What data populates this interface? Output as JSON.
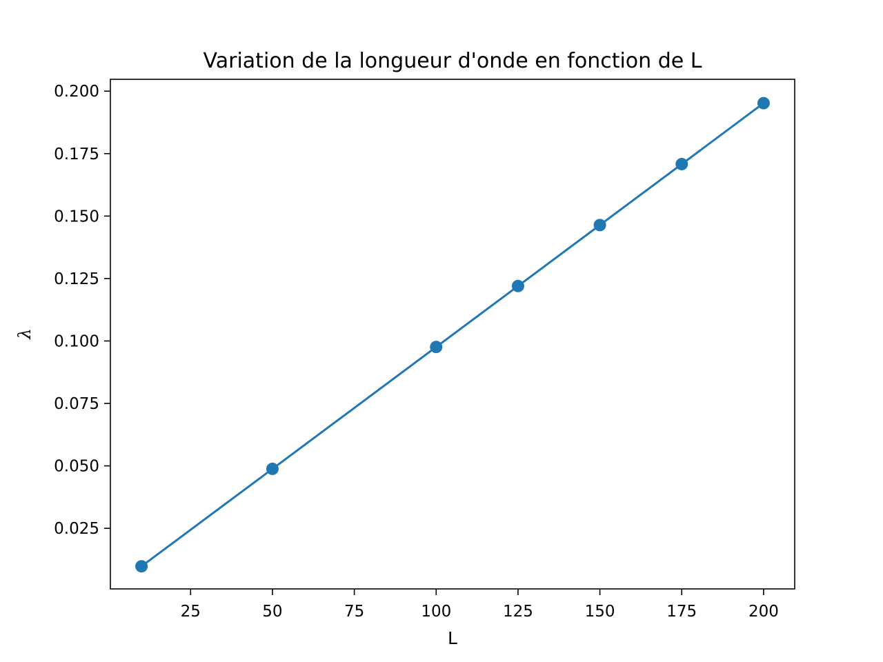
{
  "chart_data": {
    "type": "line",
    "title": "Variation de la longueur d'onde en fonction de L",
    "xlabel": "L",
    "ylabel": "λ",
    "xlim": [
      0.5,
      209.5
    ],
    "ylim": [
      0.00075,
      0.20475
    ],
    "xticks": [
      25,
      50,
      75,
      100,
      125,
      150,
      175,
      200
    ],
    "xtick_labels": [
      "25",
      "50",
      "75",
      "100",
      "125",
      "150",
      "175",
      "200"
    ],
    "yticks": [
      0.025,
      0.05,
      0.075,
      0.1,
      0.125,
      0.15,
      0.175,
      0.2
    ],
    "ytick_labels": [
      "0.025",
      "0.050",
      "0.075",
      "0.100",
      "0.125",
      "0.150",
      "0.175",
      "0.200"
    ],
    "grid": false,
    "series": [
      {
        "x": [
          10,
          50,
          100,
          125,
          150,
          175,
          200
        ],
        "y": [
          0.0098,
          0.0488,
          0.0976,
          0.122,
          0.1464,
          0.1708,
          0.1952
        ],
        "color": "#1f77b4",
        "marker": "circle"
      }
    ]
  }
}
